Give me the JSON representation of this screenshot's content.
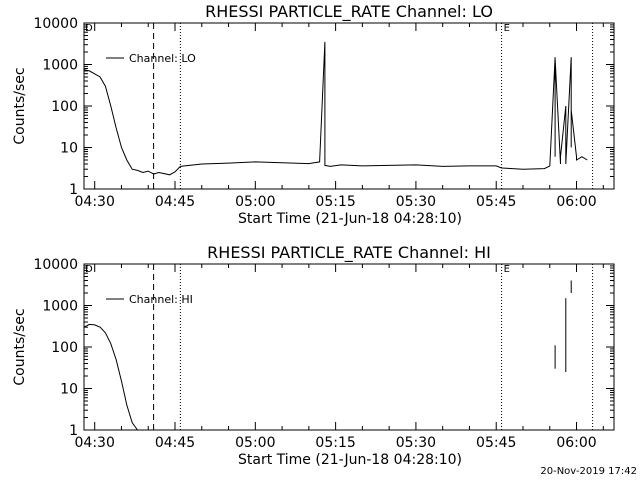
{
  "footer_stamp": "20-Nov-2019 17:42",
  "chart_data": [
    {
      "type": "line",
      "title": "RHESSI PARTICLE_RATE Channel: LO",
      "xlabel": "Start Time (21-Jun-18 04:28:10)",
      "ylabel": "Counts/sec",
      "yscale": "log",
      "ylim": [
        1,
        10000
      ],
      "xlim": [
        "04:28",
        "06:07"
      ],
      "xticks": [
        "04:30",
        "04:45",
        "05:00",
        "05:15",
        "05:30",
        "05:45",
        "06:00"
      ],
      "yticks": [
        "1",
        "10",
        "100",
        "1000",
        "10000"
      ],
      "legend": {
        "entry": "Channel: LO",
        "placement": "top-left"
      },
      "markers": {
        "left_label": "D",
        "right_label": "E"
      },
      "vlines": [
        {
          "x": "04:41",
          "style": "dashed"
        },
        {
          "x": "04:46",
          "style": "dotted"
        },
        {
          "x": "05:46",
          "style": "dotted"
        },
        {
          "x": "06:03",
          "style": "dotted"
        }
      ],
      "series": [
        {
          "x": [
            "04:28",
            "04:29",
            "04:31",
            "04:32",
            "04:33",
            "04:34",
            "04:35",
            "04:36",
            "04:37",
            "04:38",
            "04:39",
            "04:40",
            "04:41",
            "04:42",
            "04:44",
            "04:45",
            "04:46",
            "04:50",
            "04:55",
            "05:00",
            "05:05",
            "05:10",
            "05:12",
            "05:13",
            "05:13",
            "05:13",
            "05:14",
            "05:16",
            "05:20",
            "05:25",
            "05:30",
            "05:35",
            "05:40",
            "05:45",
            "05:46",
            "05:50",
            "05:54",
            "05:55",
            "05:56",
            "05:56",
            "05:56",
            "05:57",
            "05:57",
            "05:58",
            "05:58",
            "05:59",
            "05:59",
            "05:59",
            "06:00",
            "06:00",
            "06:01",
            "06:02"
          ],
          "y": [
            750,
            700,
            500,
            300,
            100,
            30,
            10,
            5,
            3,
            2.8,
            2.5,
            2.7,
            2.3,
            2.5,
            2.2,
            2.6,
            3.5,
            4,
            4.2,
            4.5,
            4.3,
            4.1,
            4.5,
            3500,
            3.8,
            3.7,
            3.5,
            3.8,
            3.6,
            3.7,
            3.8,
            3.5,
            3.6,
            3.6,
            3.2,
            3,
            3.1,
            3.6,
            1500,
            6,
            1400,
            4,
            6,
            100,
            4,
            1500,
            10,
            80,
            6,
            5,
            6,
            5
          ]
        }
      ]
    },
    {
      "type": "line",
      "title": "RHESSI PARTICLE_RATE Channel: HI",
      "xlabel": "Start Time (21-Jun-18 04:28:10)",
      "ylabel": "Counts/sec",
      "yscale": "log",
      "ylim": [
        1,
        10000
      ],
      "xlim": [
        "04:28",
        "06:07"
      ],
      "xticks": [
        "04:30",
        "04:45",
        "05:00",
        "05:15",
        "05:30",
        "05:45",
        "06:00"
      ],
      "yticks": [
        "1",
        "10",
        "100",
        "1000",
        "10000"
      ],
      "legend": {
        "entry": "Channel: HI",
        "placement": "top-left"
      },
      "markers": {
        "left_label": "D",
        "right_label": "E"
      },
      "vlines": [
        {
          "x": "04:41",
          "style": "dashed"
        },
        {
          "x": "04:46",
          "style": "dotted"
        },
        {
          "x": "05:46",
          "style": "dotted"
        },
        {
          "x": "06:03",
          "style": "dotted"
        }
      ],
      "series": [
        {
          "segments": [
            {
              "x": [
                "04:28",
                "04:29",
                "04:30",
                "04:31",
                "04:32",
                "04:33",
                "04:34",
                "04:35",
                "04:36",
                "04:37",
                "04:38"
              ],
              "y": [
                300,
                350,
                340,
                300,
                220,
                120,
                50,
                15,
                4,
                1.5,
                1
              ]
            },
            {
              "x": [
                "05:56",
                "05:56"
              ],
              "y": [
                30,
                110
              ]
            },
            {
              "x": [
                "05:58",
                "05:58"
              ],
              "y": [
                25,
                1500
              ]
            },
            {
              "x": [
                "05:59",
                "05:59"
              ],
              "y": [
                2000,
                4000
              ]
            }
          ]
        }
      ]
    }
  ]
}
